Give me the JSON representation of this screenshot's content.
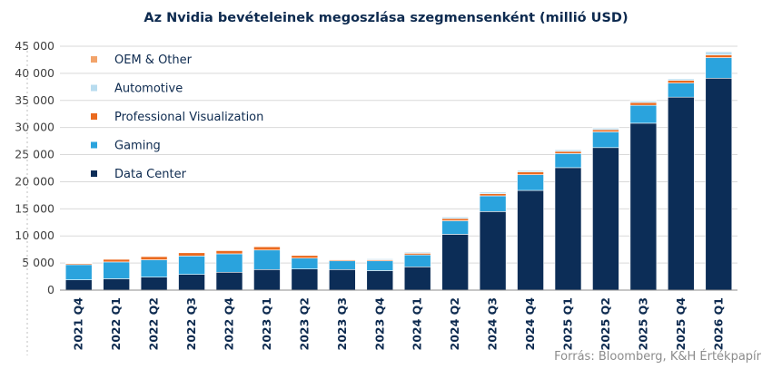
{
  "chart_data": {
    "type": "bar",
    "stacked": true,
    "title": "Az Nvidia bevételeinek megoszlása szegmensenként (millió USD)",
    "source": "Forrás: Bloomberg, K&H Értékpapír",
    "ylim": [
      0,
      45000
    ],
    "yticks": [
      0,
      5000,
      10000,
      15000,
      20000,
      25000,
      30000,
      35000,
      40000,
      45000
    ],
    "ytick_labels": [
      "0",
      "5 000",
      "10 000",
      "15 000",
      "20 000",
      "25 000",
      "30 000",
      "35 000",
      "40 000",
      "45 000"
    ],
    "grid": true,
    "legend_position": "top-left",
    "categories": [
      "2021 Q4",
      "2022 Q1",
      "2022 Q2",
      "2022 Q3",
      "2022 Q4",
      "2023 Q1",
      "2023 Q2",
      "2023 Q3",
      "2023 Q4",
      "2024 Q1",
      "2024 Q2",
      "2024 Q3",
      "2024 Q4",
      "2025 Q1",
      "2025 Q2",
      "2025 Q3",
      "2025 Q4",
      "2026 Q1"
    ],
    "series": [
      {
        "name": "Data Center",
        "color": "#0c2d57",
        "values": [
          1900,
          2100,
          2400,
          2900,
          3300,
          3800,
          3900,
          3800,
          3600,
          4300,
          10300,
          14500,
          18400,
          22600,
          26300,
          30800,
          35600,
          39100
        ]
      },
      {
        "name": "Gaming",
        "color": "#2aa3dd",
        "values": [
          2800,
          3100,
          3200,
          3400,
          3400,
          3600,
          2000,
          1600,
          1800,
          2200,
          2500,
          2900,
          2900,
          2600,
          2900,
          3300,
          2600,
          3800
        ]
      },
      {
        "name": "Professional Visualization",
        "color": "#ea6a1f",
        "values": [
          200,
          500,
          600,
          600,
          600,
          600,
          500,
          200,
          200,
          300,
          400,
          400,
          500,
          400,
          400,
          500,
          500,
          500
        ]
      },
      {
        "name": "Automotive",
        "color": "#b8dcef",
        "values": [
          100,
          100,
          100,
          100,
          100,
          100,
          100,
          100,
          200,
          200,
          300,
          300,
          300,
          300,
          300,
          300,
          300,
          600
        ]
      },
      {
        "name": "OEM & Other",
        "color": "#f2a36a",
        "values": [
          100,
          100,
          100,
          100,
          100,
          100,
          100,
          100,
          100,
          100,
          100,
          100,
          100,
          100,
          100,
          100,
          100,
          100
        ]
      }
    ]
  }
}
